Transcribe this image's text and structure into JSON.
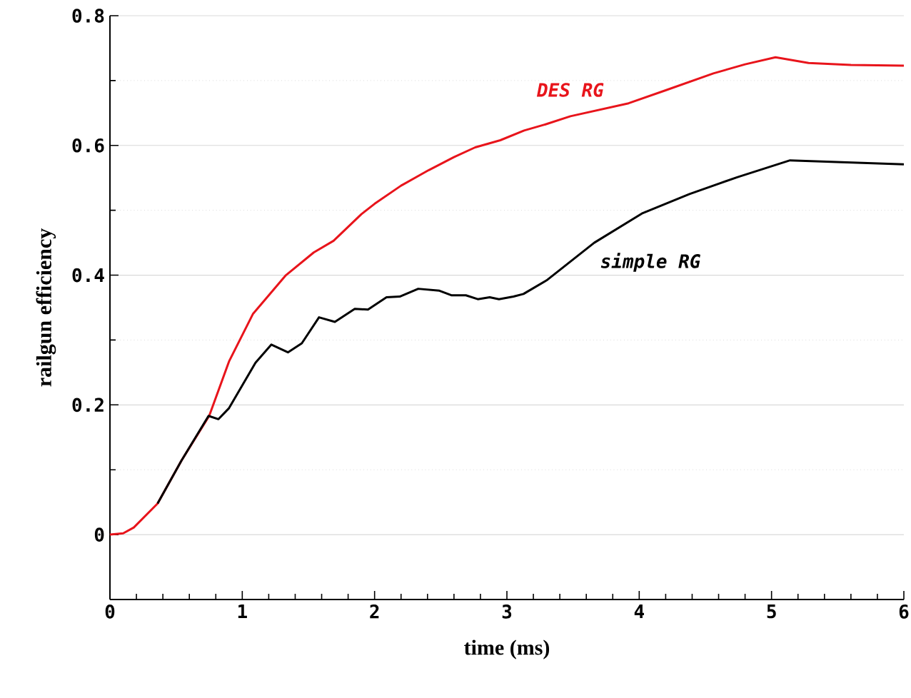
{
  "chart_data": {
    "type": "line",
    "xlabel": "time (ms)",
    "ylabel": "railgun efficiency",
    "xlim": [
      0,
      6
    ],
    "ylim": [
      -0.1,
      0.8
    ],
    "xticks": [
      0,
      1,
      2,
      3,
      4,
      5,
      6
    ],
    "yticks": [
      0,
      0.2,
      0.4,
      0.6,
      0.8
    ],
    "grid": "y",
    "series": [
      {
        "name": "DES RG",
        "color": "#e8141b",
        "x": [
          0,
          0.1,
          0.18,
          0.36,
          0.54,
          0.75,
          0.9,
          1.08,
          1.33,
          1.54,
          1.69,
          1.9,
          2.0,
          2.2,
          2.41,
          2.6,
          2.76,
          2.95,
          3.13,
          3.3,
          3.48,
          3.7,
          3.92,
          4.2,
          4.56,
          4.8,
          5.03,
          5.28,
          5.6,
          6.0
        ],
        "values": [
          0,
          0.002,
          0.011,
          0.048,
          0.114,
          0.183,
          0.267,
          0.34,
          0.4,
          0.435,
          0.453,
          0.494,
          0.51,
          0.538,
          0.562,
          0.582,
          0.597,
          0.608,
          0.623,
          0.633,
          0.645,
          0.655,
          0.665,
          0.685,
          0.711,
          0.725,
          0.736,
          0.727,
          0.724,
          0.723
        ]
      },
      {
        "name": "simple RG",
        "color": "#000000",
        "x": [
          0.36,
          0.54,
          0.745,
          0.82,
          0.9,
          1.0,
          1.1,
          1.22,
          1.345,
          1.45,
          1.58,
          1.7,
          1.85,
          1.95,
          2.09,
          2.19,
          2.33,
          2.49,
          2.58,
          2.69,
          2.78,
          2.87,
          2.94,
          3.05,
          3.125,
          3.3,
          3.66,
          4.02,
          4.38,
          4.74,
          5.14,
          6.0
        ],
        "values": [
          0.048,
          0.114,
          0.183,
          0.178,
          0.195,
          0.23,
          0.265,
          0.293,
          0.281,
          0.295,
          0.335,
          0.328,
          0.348,
          0.347,
          0.366,
          0.367,
          0.379,
          0.376,
          0.369,
          0.369,
          0.363,
          0.366,
          0.363,
          0.367,
          0.371,
          0.392,
          0.45,
          0.495,
          0.525,
          0.551,
          0.577,
          0.571
        ]
      }
    ],
    "legend": false,
    "marker": "none",
    "line_style": "solid"
  }
}
